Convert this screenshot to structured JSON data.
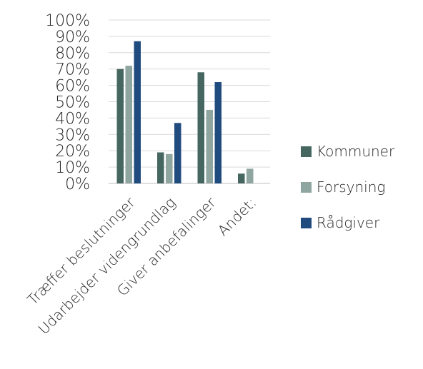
{
  "chart_data": {
    "type": "bar",
    "categories": [
      "Træffer beslutninger",
      "Udarbejder videngrundlag",
      "Giver anbefalinger",
      "Andet:"
    ],
    "series": [
      {
        "name": "Kommuner",
        "values": [
          70,
          19,
          68,
          6
        ],
        "color": "#466760"
      },
      {
        "name": "Forsyning",
        "values": [
          72,
          18,
          45,
          9
        ],
        "color": "#8fa6a0"
      },
      {
        "name": "Rådgiver",
        "values": [
          87,
          37,
          62,
          null
        ],
        "color": "#204b7f"
      }
    ],
    "yticks": [
      "0%",
      "10%",
      "20%",
      "30%",
      "40%",
      "50%",
      "60%",
      "70%",
      "80%",
      "90%",
      "100%"
    ],
    "ylim": [
      0,
      100
    ],
    "grid": true,
    "legend_position": "right"
  }
}
